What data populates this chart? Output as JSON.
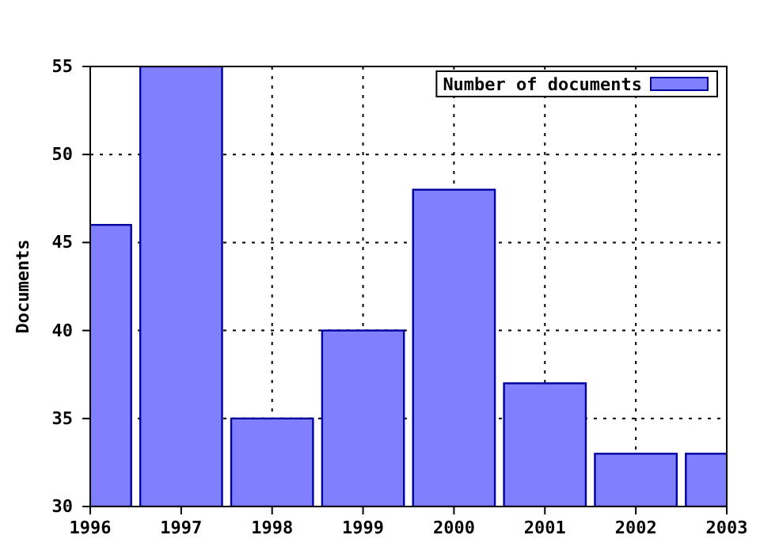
{
  "chart_data": {
    "type": "bar",
    "ylabel": "Documents",
    "x": [
      1996,
      1997,
      1998,
      1999,
      2000,
      2001,
      2002,
      2003
    ],
    "series": [
      {
        "name": "Number of documents",
        "color": "#8080ff",
        "values": [
          46,
          55,
          35,
          40,
          48,
          37,
          33,
          33
        ]
      }
    ],
    "xlim": [
      1996,
      2003
    ],
    "xticks": [
      1996,
      1997,
      1998,
      1999,
      2000,
      2001,
      2002,
      2003
    ],
    "ylim": [
      30,
      55
    ],
    "yticks": [
      30,
      35,
      40,
      45,
      50,
      55
    ],
    "grid": true,
    "legend": "top right"
  }
}
